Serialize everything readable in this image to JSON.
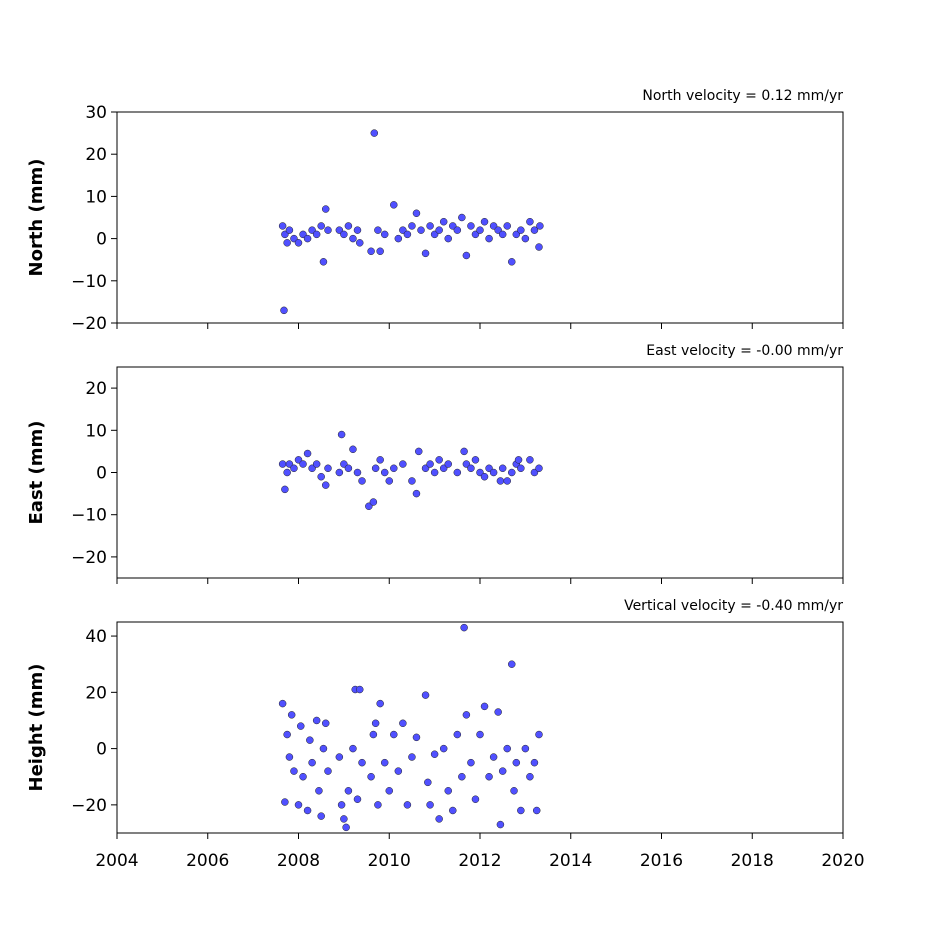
{
  "chart_data": [
    {
      "type": "scatter",
      "annotation": "North velocity = 0.12 mm/yr",
      "ylabel": "North (mm)",
      "color": "#5050ff",
      "xlim": [
        2004,
        2020
      ],
      "xticks": [
        2004,
        2006,
        2008,
        2010,
        2012,
        2014,
        2016,
        2018,
        2020
      ],
      "ylim": [
        -20,
        30
      ],
      "yticks": [
        {
          "value": -20,
          "label": "−20"
        },
        {
          "value": -10,
          "label": "−10"
        },
        0,
        10,
        20,
        30
      ],
      "x": [
        2007.65,
        2007.68,
        2007.7,
        2007.75,
        2007.8,
        2007.9,
        2008.0,
        2008.1,
        2008.2,
        2008.3,
        2008.4,
        2008.5,
        2008.55,
        2008.6,
        2008.65,
        2008.9,
        2009.0,
        2009.1,
        2009.2,
        2009.3,
        2009.35,
        2009.6,
        2009.67,
        2009.75,
        2009.8,
        2009.9,
        2010.1,
        2010.2,
        2010.3,
        2010.4,
        2010.5,
        2010.6,
        2010.7,
        2010.8,
        2010.9,
        2011.0,
        2011.1,
        2011.2,
        2011.3,
        2011.4,
        2011.5,
        2011.6,
        2011.7,
        2011.8,
        2011.9,
        2012.0,
        2012.1,
        2012.2,
        2012.3,
        2012.4,
        2012.5,
        2012.6,
        2012.7,
        2012.8,
        2012.9,
        2013.0,
        2013.1,
        2013.2,
        2013.3,
        2013.32
      ],
      "values": [
        3,
        -17,
        1,
        -1,
        2,
        0,
        -1,
        1,
        0,
        2,
        1,
        3,
        -5.5,
        7,
        2,
        2,
        1,
        3,
        0,
        2,
        -1,
        -3,
        25,
        2,
        -3,
        1,
        8,
        0,
        2,
        1,
        3,
        6,
        2,
        -3.5,
        3,
        1,
        2,
        4,
        0,
        3,
        2,
        5,
        -4,
        3,
        1,
        2,
        4,
        0,
        3,
        2,
        1,
        3,
        -5.5,
        1,
        2,
        0,
        4,
        2,
        -2,
        3
      ]
    },
    {
      "type": "scatter",
      "annotation": "East velocity = -0.00 mm/yr",
      "ylabel": "East (mm)",
      "color": "#5050ff",
      "xlim": [
        2004,
        2020
      ],
      "xticks": [
        2004,
        2006,
        2008,
        2010,
        2012,
        2014,
        2016,
        2018,
        2020
      ],
      "ylim": [
        -25,
        25
      ],
      "yticks": [
        {
          "value": -20,
          "label": "−20"
        },
        {
          "value": -10,
          "label": "−10"
        },
        0,
        10,
        20
      ],
      "x": [
        2007.65,
        2007.7,
        2007.75,
        2007.8,
        2007.9,
        2008.0,
        2008.1,
        2008.2,
        2008.3,
        2008.4,
        2008.5,
        2008.6,
        2008.65,
        2008.9,
        2008.95,
        2009.0,
        2009.1,
        2009.2,
        2009.3,
        2009.4,
        2009.55,
        2009.65,
        2009.7,
        2009.8,
        2009.9,
        2010.0,
        2010.1,
        2010.3,
        2010.5,
        2010.6,
        2010.65,
        2010.8,
        2010.9,
        2011.0,
        2011.1,
        2011.2,
        2011.3,
        2011.5,
        2011.65,
        2011.7,
        2011.8,
        2011.9,
        2012.0,
        2012.1,
        2012.2,
        2012.3,
        2012.45,
        2012.5,
        2012.6,
        2012.7,
        2012.8,
        2012.85,
        2012.9,
        2013.1,
        2013.2,
        2013.3
      ],
      "values": [
        2,
        -4,
        0,
        2,
        1,
        3,
        2,
        4.5,
        1,
        2,
        -1,
        -3,
        1,
        0,
        9,
        2,
        1,
        5.5,
        0,
        -2,
        -8,
        -7,
        1,
        3,
        0,
        -2,
        1,
        2,
        -2,
        -5,
        5,
        1,
        2,
        0,
        3,
        1,
        2,
        0,
        5,
        2,
        1,
        3,
        0,
        -1,
        1,
        0,
        -2,
        1,
        -2,
        0,
        2,
        3,
        1,
        3,
        0,
        1
      ]
    },
    {
      "type": "scatter",
      "annotation": "Vertical velocity = -0.40 mm/yr",
      "ylabel": "Height (mm)",
      "color": "#5050ff",
      "xlim": [
        2004,
        2020
      ],
      "xticks": [
        2004,
        2006,
        2008,
        2010,
        2012,
        2014,
        2016,
        2018,
        2020
      ],
      "ylim": [
        -30,
        45
      ],
      "yticks": [
        {
          "value": -20,
          "label": "−20"
        },
        0,
        20,
        40
      ],
      "x": [
        2007.65,
        2007.7,
        2007.75,
        2007.8,
        2007.85,
        2007.9,
        2008.0,
        2008.05,
        2008.1,
        2008.2,
        2008.25,
        2008.3,
        2008.4,
        2008.45,
        2008.5,
        2008.55,
        2008.6,
        2008.65,
        2008.9,
        2008.95,
        2009.0,
        2009.05,
        2009.1,
        2009.2,
        2009.25,
        2009.3,
        2009.35,
        2009.4,
        2009.6,
        2009.65,
        2009.7,
        2009.75,
        2009.8,
        2009.9,
        2010.0,
        2010.1,
        2010.2,
        2010.3,
        2010.4,
        2010.5,
        2010.6,
        2010.8,
        2010.85,
        2010.9,
        2011.0,
        2011.1,
        2011.2,
        2011.3,
        2011.4,
        2011.5,
        2011.6,
        2011.65,
        2011.7,
        2011.8,
        2011.9,
        2012.0,
        2012.1,
        2012.2,
        2012.3,
        2012.4,
        2012.45,
        2012.5,
        2012.6,
        2012.7,
        2012.75,
        2012.8,
        2012.9,
        2013.0,
        2013.1,
        2013.2,
        2013.25,
        2013.3
      ],
      "values": [
        16,
        -19,
        5,
        -3,
        12,
        -8,
        -20,
        8,
        -10,
        -22,
        3,
        -5,
        10,
        -15,
        -24,
        0,
        9,
        -8,
        -3,
        -20,
        -25,
        -28,
        -15,
        0,
        21,
        -18,
        21,
        -5,
        -10,
        5,
        9,
        -20,
        16,
        -5,
        -15,
        5,
        -8,
        9,
        -20,
        -3,
        4,
        19,
        -12,
        -20,
        -2,
        -25,
        0,
        -15,
        -22,
        5,
        -10,
        43,
        12,
        -5,
        -18,
        5,
        15,
        -10,
        -3,
        13,
        -27,
        -8,
        0,
        30,
        -15,
        -5,
        -22,
        0,
        -10,
        -5,
        -22,
        5
      ]
    }
  ]
}
